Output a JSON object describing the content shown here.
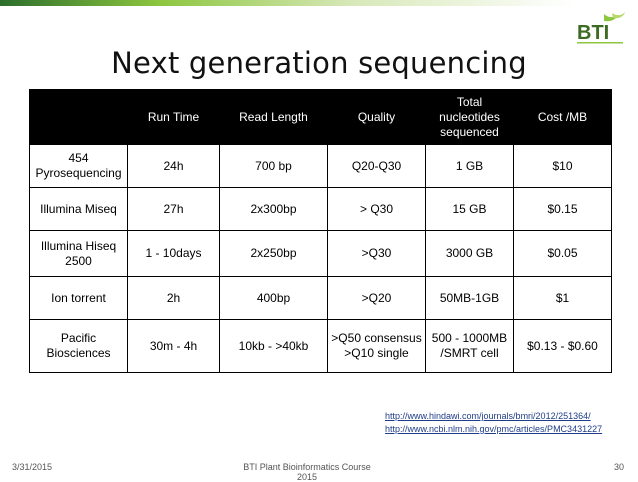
{
  "slide": {
    "title": "Next generation sequencing",
    "logo_text": "BTI",
    "accent_color": "#8dc63f"
  },
  "table": {
    "headers": [
      "",
      "Run Time",
      "Read Length",
      "Quality",
      "Total\nnucleotides\nsequenced",
      "Cost /MB"
    ],
    "rows": [
      [
        "454\nPyrosequencing",
        "24h",
        "700 bp",
        "Q20-Q30",
        "1 GB",
        "$10"
      ],
      [
        "Illumina Miseq",
        "27h",
        "2x300bp",
        "> Q30",
        "15 GB",
        "$0.15"
      ],
      [
        "Illumina Hiseq\n2500",
        "1 - 10days",
        "2x250bp",
        ">Q30",
        "3000 GB",
        "$0.05"
      ],
      [
        "Ion torrent",
        "2h",
        "400bp",
        ">Q20",
        "50MB-1GB",
        "$1"
      ],
      [
        "Pacific\nBiosciences",
        "30m - 4h",
        "10kb - >40kb",
        ">Q50 consensus\n>Q10 single",
        "500 - 1000MB\n/SMRT cell",
        "$0.13 - $0.60"
      ]
    ]
  },
  "links": [
    "http://www.hindawi.com/journals/bmri/2012/251364/",
    "http://www.ncbi.nlm.nih.gov/pmc/articles/PMC3431227"
  ],
  "footer": {
    "date": "3/31/2015",
    "center": "BTI Plant Bioinformatics Course 2015",
    "page": "30"
  }
}
